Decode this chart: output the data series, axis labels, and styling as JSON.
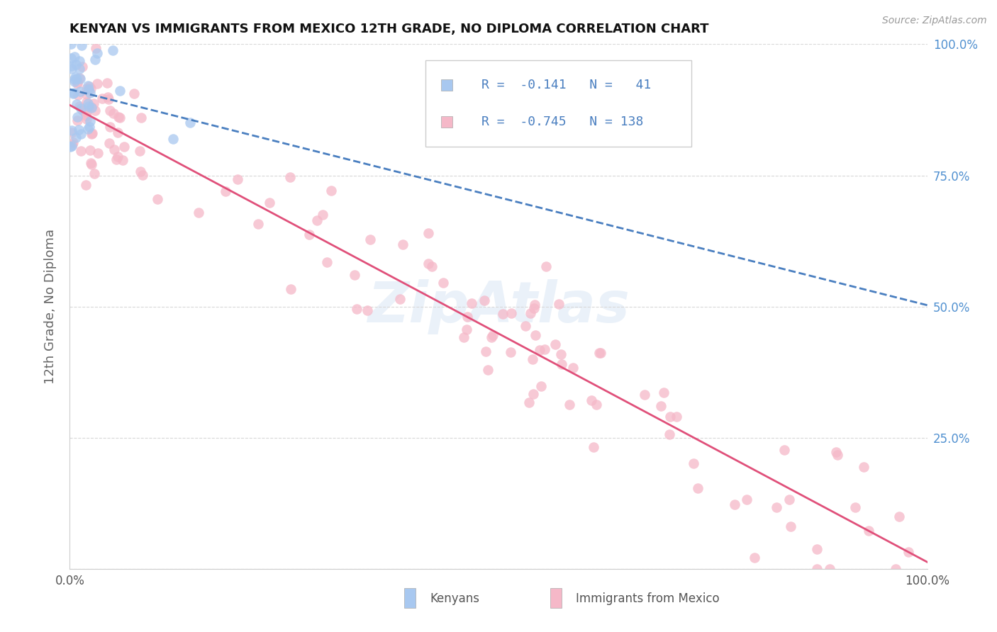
{
  "title": "KENYAN VS IMMIGRANTS FROM MEXICO 12TH GRADE, NO DIPLOMA CORRELATION CHART",
  "source": "Source: ZipAtlas.com",
  "ylabel": "12th Grade, No Diploma",
  "R_blue": -0.141,
  "N_blue": 41,
  "R_pink": -0.745,
  "N_pink": 138,
  "legend_label_blue": "Kenyans",
  "legend_label_pink": "Immigrants from Mexico",
  "blue_color": "#a8c8f0",
  "pink_color": "#f5b8c8",
  "blue_line_color": "#4a7fc0",
  "pink_line_color": "#e0507a",
  "right_tick_color": "#5090d0",
  "right_yticklabels": [
    "",
    "25.0%",
    "50.0%",
    "75.0%",
    "100.0%"
  ],
  "watermark": "ZipAtlas"
}
